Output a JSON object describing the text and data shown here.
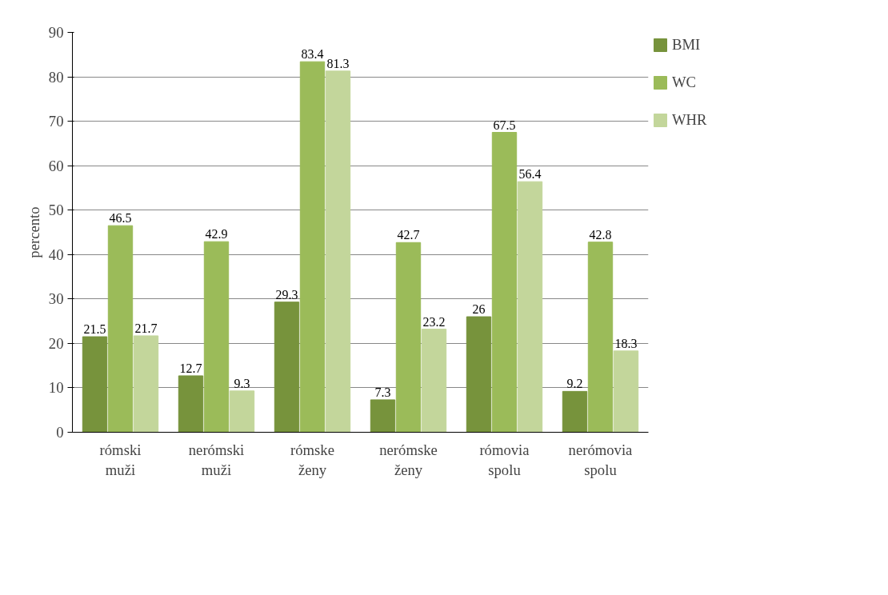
{
  "chart_data": {
    "type": "bar",
    "ylabel": "percento",
    "categories": [
      "rómski\nmuži",
      "nerómski\nmuži",
      "rómske\nženy",
      "nerómske\nženy",
      "rómovia\nspolu",
      "nerómovia\nspolu"
    ],
    "series": [
      {
        "name": "BMI",
        "color": "#77933c",
        "values": [
          21.5,
          12.7,
          29.3,
          7.3,
          26,
          9.2
        ]
      },
      {
        "name": "WC",
        "color": "#9bbb59",
        "values": [
          46.5,
          42.9,
          83.4,
          42.7,
          67.5,
          42.8
        ]
      },
      {
        "name": "WHR",
        "color": "#c3d69b",
        "values": [
          21.7,
          9.3,
          81.3,
          23.2,
          56.4,
          18.3
        ]
      }
    ],
    "ylim": [
      0,
      90
    ],
    "yticks": [
      0,
      10,
      20,
      30,
      40,
      50,
      60,
      70,
      80,
      90
    ],
    "grid": "y",
    "legend": "right",
    "data_labels": true
  }
}
